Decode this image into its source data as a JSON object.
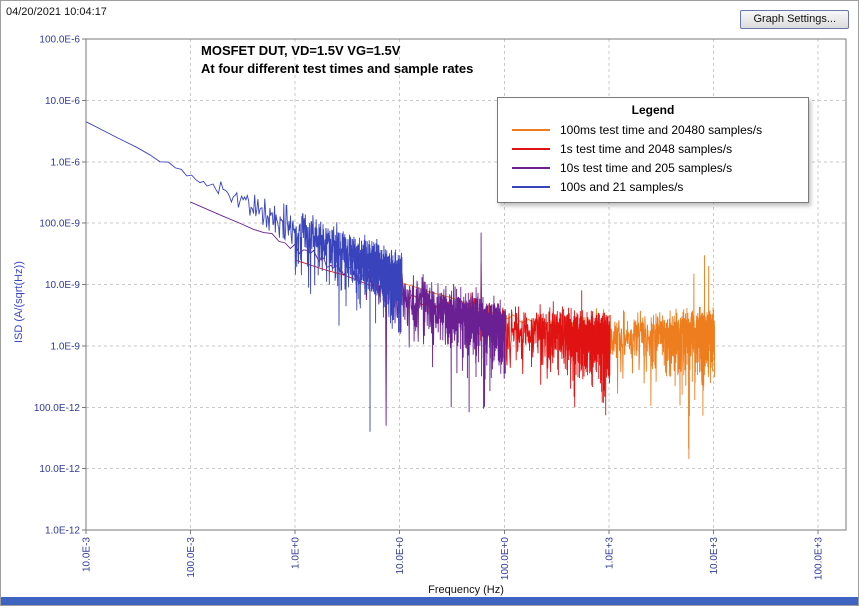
{
  "header": {
    "timestamp": "04/20/2021 10:04:17",
    "graph_settings_label": "Graph Settings..."
  },
  "legend": {
    "title": "Legend"
  },
  "colors": {
    "tick_label": "#2E3A9C",
    "ylabel": "#3946C8",
    "grid": "#C9C9C9",
    "frame": "#7A7A7A",
    "bottom_strip": "#3E63C0"
  },
  "chart_data": {
    "type": "line",
    "title": "MOSFET DUT, VD=1.5V VG=1.5V",
    "subtitle": "At four different test times and sample rates",
    "xlabel": "Frequency (Hz)",
    "ylabel": "ISD (A/(sqrt(Hz))",
    "x_scale": "log",
    "y_scale": "log",
    "xlim": [
      0.01,
      185000
    ],
    "ylim": [
      1e-12,
      0.0001
    ],
    "grid": true,
    "legend_position": "top-right",
    "noise_model": "rayleigh",
    "seed": 42,
    "x_ticks": [
      {
        "value": 0.01,
        "label": "10.0E-3"
      },
      {
        "value": 0.1,
        "label": "100.0E-3"
      },
      {
        "value": 1,
        "label": "1.0E+0"
      },
      {
        "value": 10,
        "label": "10.0E+0"
      },
      {
        "value": 100,
        "label": "100.0E+0"
      },
      {
        "value": 1000,
        "label": "1.0E+3"
      },
      {
        "value": 10000,
        "label": "10.0E+3"
      },
      {
        "value": 100000,
        "label": "100.0E+3"
      }
    ],
    "y_ticks": [
      {
        "value": 0.0001,
        "label": "100.0E-6"
      },
      {
        "value": 1e-05,
        "label": "10.0E-6"
      },
      {
        "value": 1e-06,
        "label": "1.0E-6"
      },
      {
        "value": 1e-07,
        "label": "100.0E-9"
      },
      {
        "value": 1e-08,
        "label": "10.0E-9"
      },
      {
        "value": 1e-09,
        "label": "1.0E-9"
      },
      {
        "value": 1e-10,
        "label": "100.0E-12"
      },
      {
        "value": 1e-11,
        "label": "10.0E-12"
      },
      {
        "value": 1e-12,
        "label": "1.0E-12"
      }
    ],
    "series": [
      {
        "id": "100ms",
        "name": "100ms test time and 20480 samples/s",
        "color": "#EE7D1D",
        "f_start": 10,
        "f_end": 10240,
        "points": 1024,
        "trend": [
          [
            10,
            1.1e-08
          ],
          [
            100,
            3e-09
          ],
          [
            1000,
            1.4e-09
          ],
          [
            10240,
            1.5e-09
          ]
        ],
        "spikes": [
          [
            4300,
            2.2e-10
          ],
          [
            6500,
            1.5e-08
          ],
          [
            8200,
            3e-08
          ],
          [
            9000,
            2e-08
          ]
        ]
      },
      {
        "id": "1s",
        "name": "1s test time and 2048 samples/s",
        "color": "#E01212",
        "f_start": 1,
        "f_end": 1024,
        "points": 1024,
        "trend": [
          [
            1,
            2.5e-08
          ],
          [
            10,
            7e-09
          ],
          [
            100,
            2e-09
          ],
          [
            1024,
            1.3e-09
          ]
        ],
        "spikes": [
          [
            60,
            2.2e-08
          ],
          [
            430,
            2e-10
          ],
          [
            550,
            8e-09
          ]
        ]
      },
      {
        "id": "10s",
        "name": "10s test time and 205 samples/s",
        "color": "#6A2092",
        "f_start": 0.1,
        "f_end": 102.5,
        "points": 1024,
        "trend": [
          [
            0.1,
            2.2e-07
          ],
          [
            1,
            4e-08
          ],
          [
            10,
            7e-09
          ],
          [
            102.5,
            1.8e-09
          ]
        ],
        "spikes": [
          [
            7.4,
            5e-11
          ],
          [
            31,
            1e-10
          ],
          [
            60,
            7e-08
          ]
        ]
      },
      {
        "id": "100s",
        "name": "100s and 21 samples/s",
        "color": "#3944BC",
        "f_start": 0.01,
        "f_end": 10.5,
        "points": 1024,
        "trend": [
          [
            0.01,
            4.5e-06
          ],
          [
            0.1,
            6e-07
          ],
          [
            1,
            8e-08
          ],
          [
            10.5,
            1.2e-08
          ]
        ],
        "spikes": [
          [
            5.2,
            4e-11
          ]
        ]
      }
    ]
  }
}
